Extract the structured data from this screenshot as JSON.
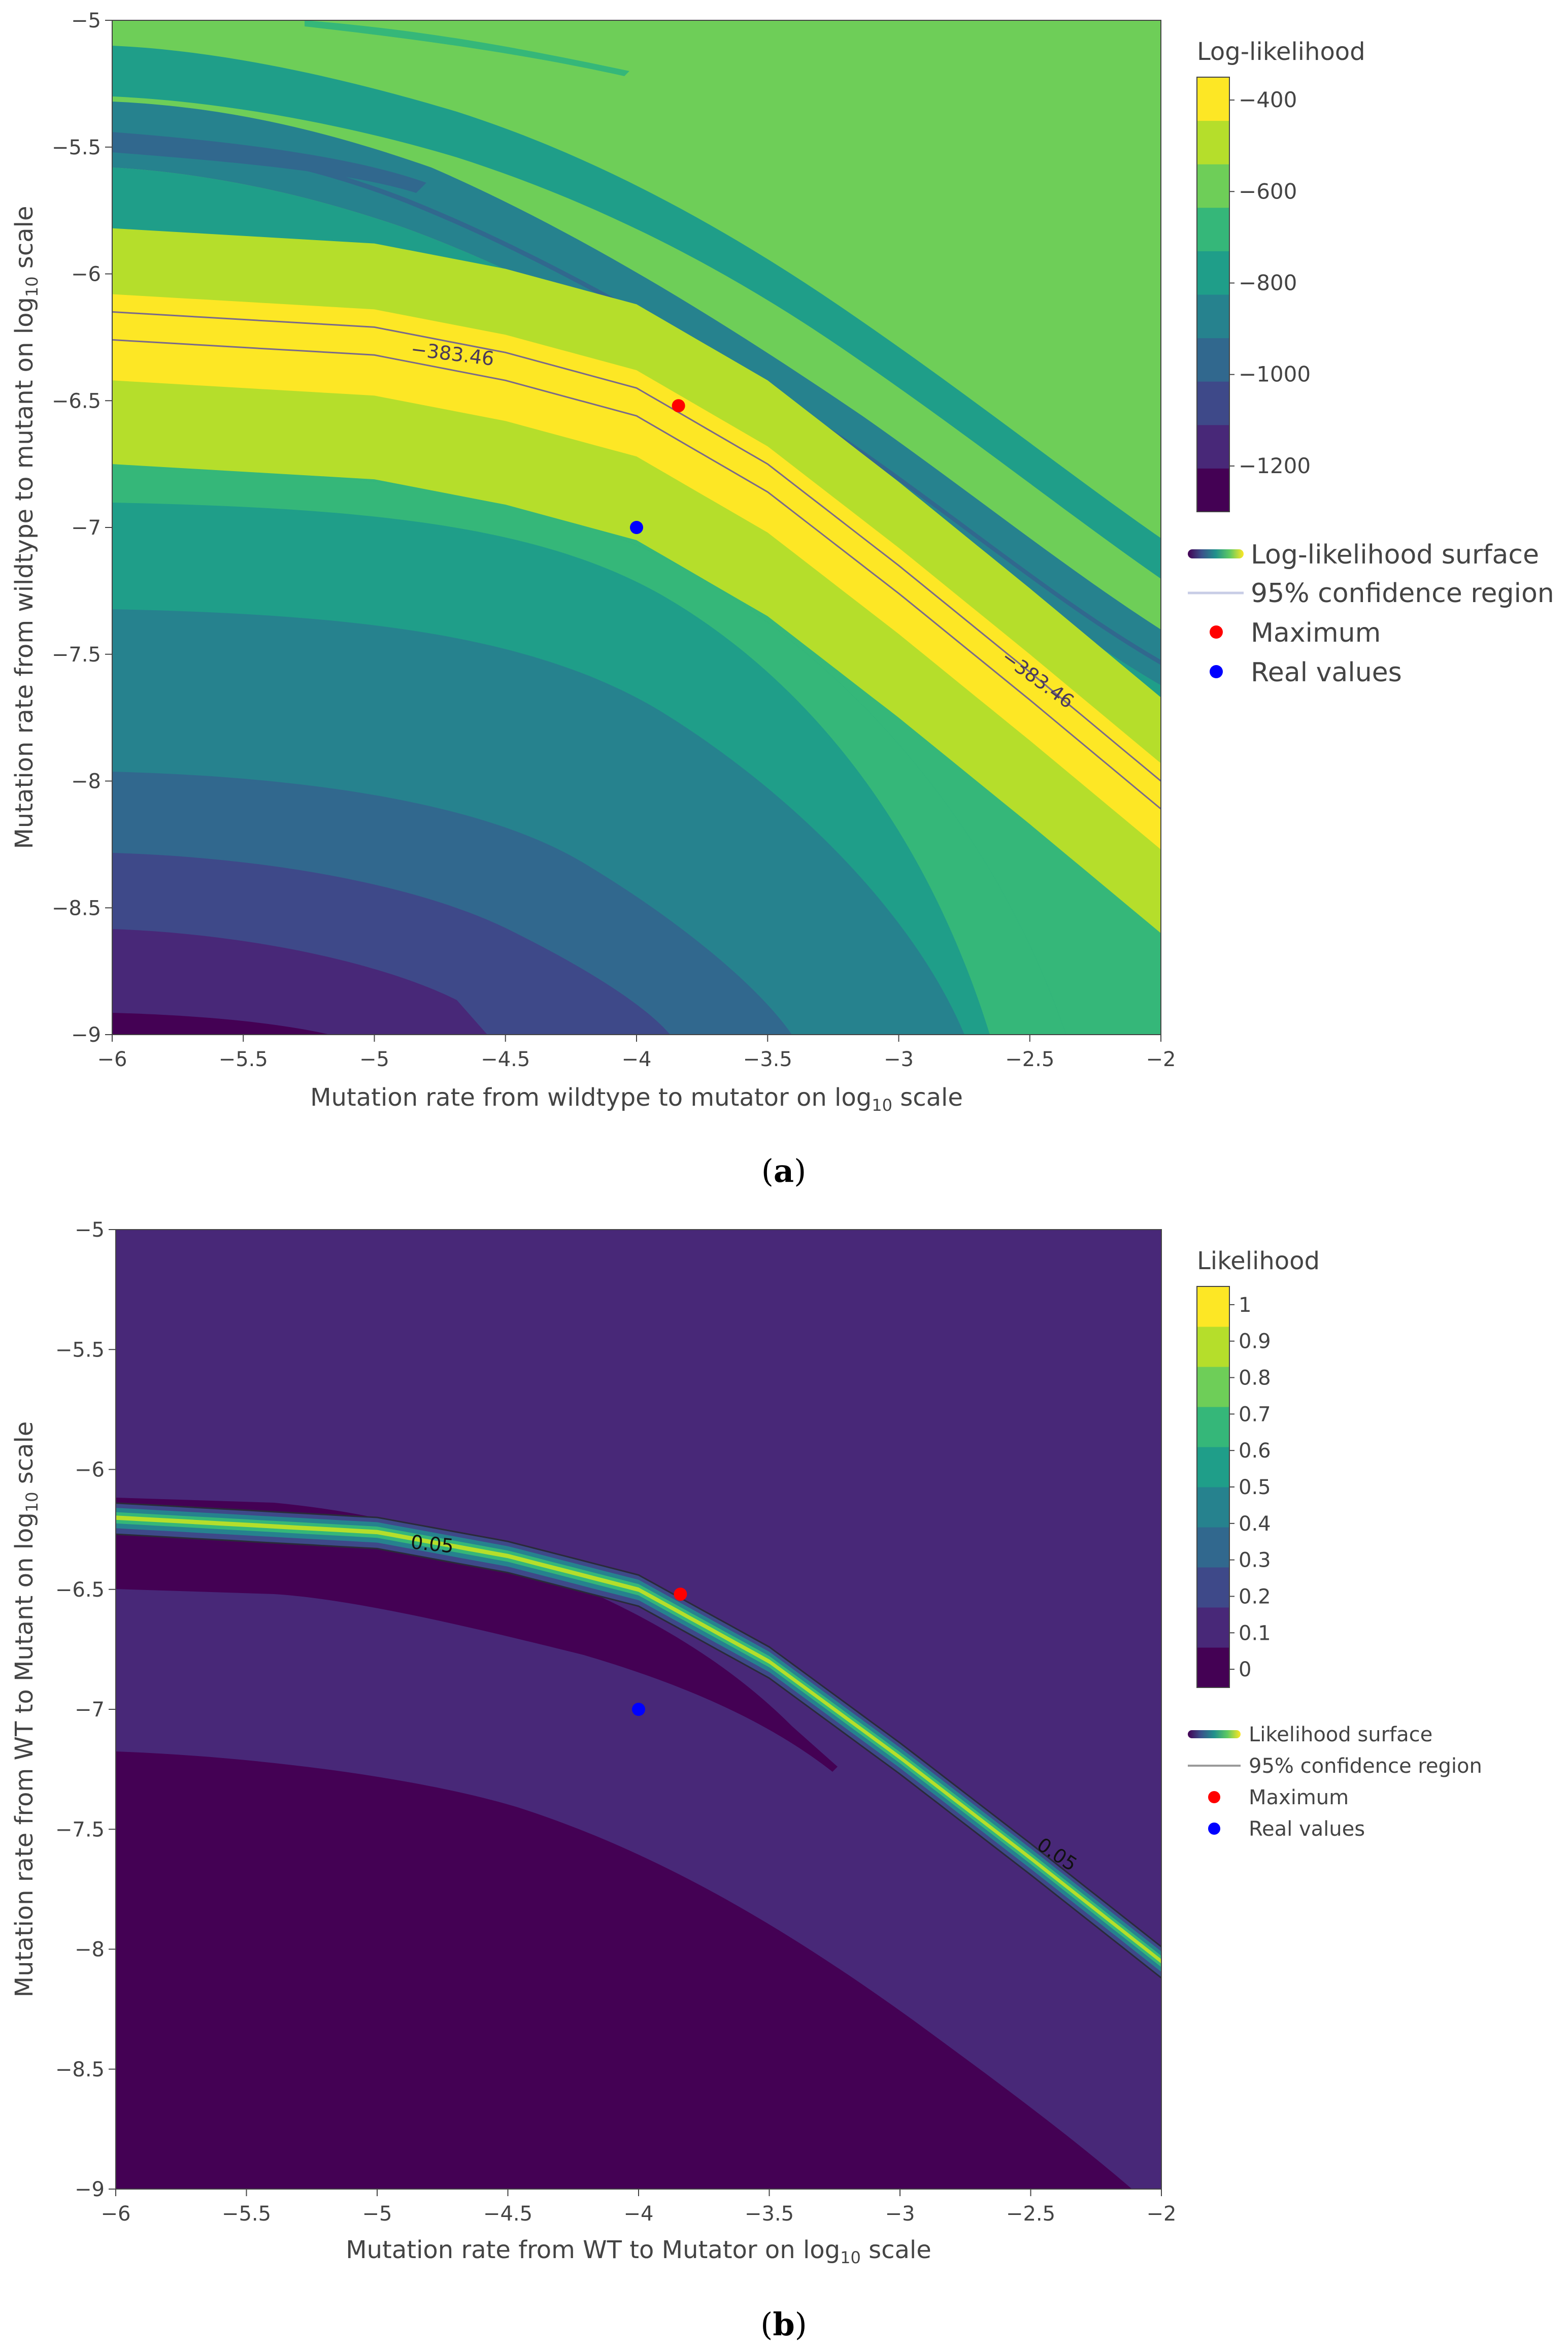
{
  "colors": {
    "viridis": [
      "#440154",
      "#482878",
      "#3e4989",
      "#31688e",
      "#26828e",
      "#1f9e89",
      "#35b779",
      "#6ece58",
      "#b5de2b",
      "#fde725"
    ],
    "maximum": "#ff0000",
    "real": "#0000ff",
    "ci_line_a": "#7a6a8a",
    "ci_line_b": "#2a2a3a"
  },
  "chart_data": [
    {
      "type": "contour",
      "panel": "a",
      "caption_letter": "a",
      "xlabel": "Mutation rate from wildtype to mutator on log",
      "xlabel_sub": "10",
      "xlabel_tail": " scale",
      "ylabel": "Mutation rate from wildtype to mutant on log",
      "ylabel_sub": "10",
      "ylabel_tail": " scale",
      "xlim": [
        -6,
        -2
      ],
      "ylim": [
        -9,
        -5
      ],
      "xticks": [
        "−6",
        "−5.5",
        "−5",
        "−4.5",
        "−4",
        "−3.5",
        "−3",
        "−2.5",
        "−2"
      ],
      "yticks": [
        "−5",
        "−5.5",
        "−6",
        "−6.5",
        "−7",
        "−7.5",
        "−8",
        "−8.5",
        "−9"
      ],
      "colorbar_title": "Log-likelihood",
      "colorbar_ticks": [
        "−400",
        "−600",
        "−800",
        "−1000",
        "−1200"
      ],
      "colorbar_tick_values": [
        -400,
        -600,
        -800,
        -1000,
        -1200
      ],
      "colorbar_range": [
        -1300,
        -350
      ],
      "ridge": {
        "x": [
          -6,
          -5,
          -4.5,
          -4,
          -3.5,
          -3,
          -2.5,
          -2
        ],
        "y": [
          -6.2,
          -6.26,
          -6.36,
          -6.5,
          -6.8,
          -7.2,
          -7.62,
          -8.05
        ]
      },
      "ci_label": "−383.46",
      "maximum": {
        "x": -3.84,
        "y": -6.52
      },
      "real_values": {
        "x": -4.0,
        "y": -7.0
      },
      "legend": [
        "Log-likelihood surface",
        "95% confidence region",
        "Maximum",
        "Real values"
      ]
    },
    {
      "type": "contour",
      "panel": "b",
      "caption_letter": "b",
      "xlabel": "Mutation rate from WT to Mutator on log",
      "xlabel_sub": "10",
      "xlabel_tail": " scale",
      "ylabel": "Mutation rate from WT to Mutant on log",
      "ylabel_sub": "10",
      "ylabel_tail": " scale",
      "xlim": [
        -6,
        -2
      ],
      "ylim": [
        -9,
        -5
      ],
      "xticks": [
        "−6",
        "−5.5",
        "−5",
        "−4.5",
        "−4",
        "−3.5",
        "−3",
        "−2.5",
        "−2"
      ],
      "yticks": [
        "−5",
        "−5.5",
        "−6",
        "−6.5",
        "−7",
        "−7.5",
        "−8",
        "−8.5",
        "−9"
      ],
      "colorbar_title": "Likelihood",
      "colorbar_ticks": [
        "1",
        "0.9",
        "0.8",
        "0.7",
        "0.6",
        "0.5",
        "0.4",
        "0.3",
        "0.2",
        "0.1",
        "0"
      ],
      "colorbar_tick_values": [
        1,
        0.9,
        0.8,
        0.7,
        0.6,
        0.5,
        0.4,
        0.3,
        0.2,
        0.1,
        0
      ],
      "colorbar_range": [
        -0.05,
        1.05
      ],
      "ridge": {
        "x": [
          -6,
          -5,
          -4.5,
          -4,
          -3.5,
          -3,
          -2.5,
          -2
        ],
        "y": [
          -6.2,
          -6.26,
          -6.36,
          -6.5,
          -6.8,
          -7.2,
          -7.62,
          -8.05
        ]
      },
      "ci_label": "0.05",
      "maximum": {
        "x": -3.84,
        "y": -6.52
      },
      "real_values": {
        "x": -4.0,
        "y": -7.0
      },
      "legend": [
        "Likelihood surface",
        "95% confidence region",
        "Maximum",
        "Real values"
      ]
    }
  ]
}
